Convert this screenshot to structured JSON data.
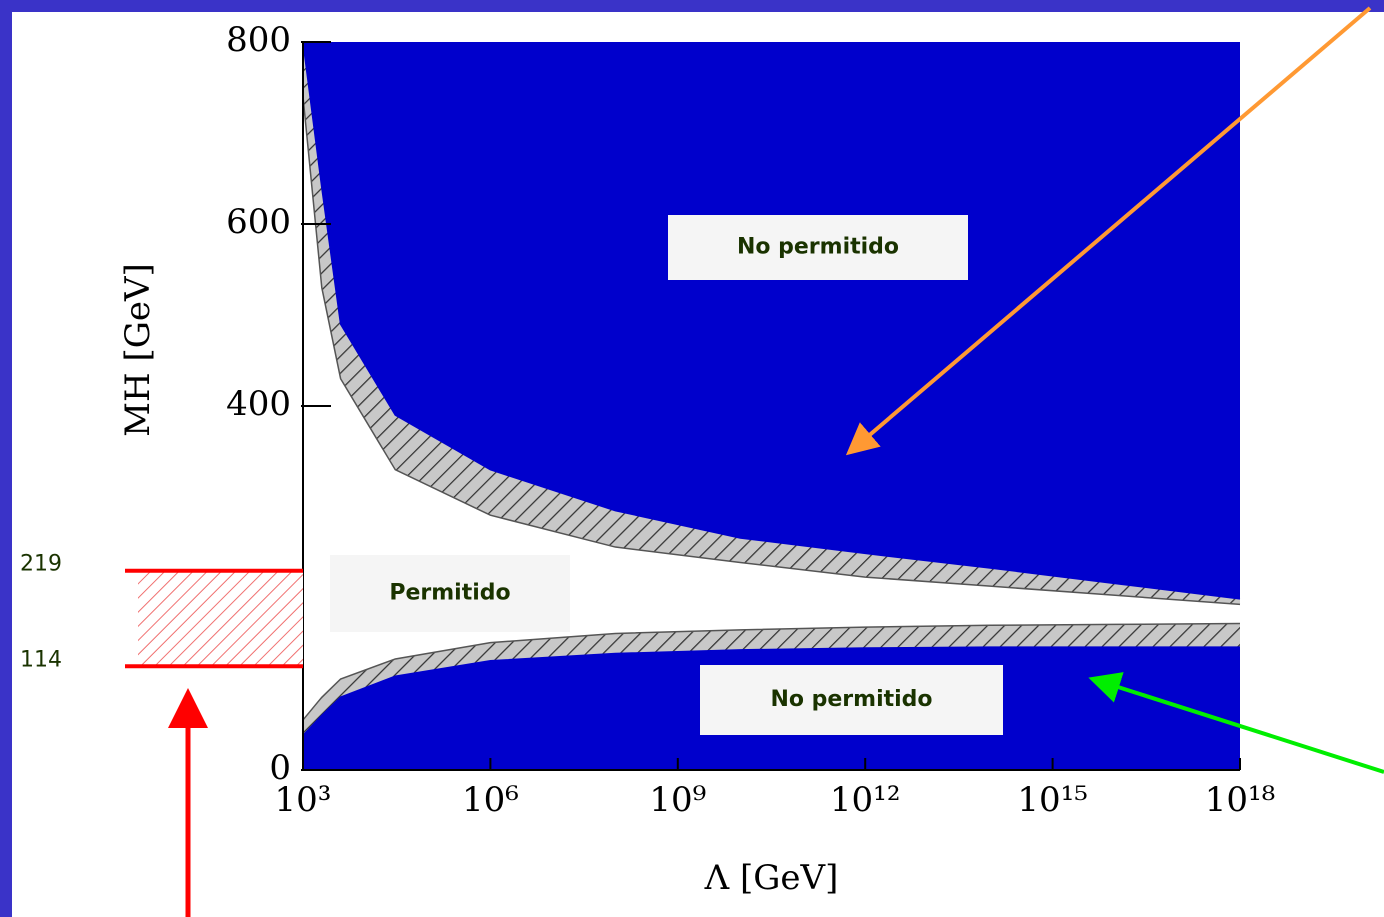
{
  "chart_data": {
    "type": "band",
    "x_label": "Λ [GeV]",
    "y_label": "MH [GeV]",
    "xscale": "log",
    "xlim": [
      1000,
      1e+18
    ],
    "xticks": [
      {
        "value": 1000,
        "label": "10³"
      },
      {
        "value": 1000000,
        "label": "10⁶"
      },
      {
        "value": 1000000000,
        "label": "10⁹"
      },
      {
        "value": 1000000000000.0,
        "label": "10¹²"
      },
      {
        "value": 1000000000000000.0,
        "label": "10¹⁵"
      },
      {
        "value": 1e+18,
        "label": "10¹⁸"
      }
    ],
    "ylim": [
      0,
      800
    ],
    "yticks": [
      0,
      400,
      600,
      800
    ],
    "x": [
      1000,
      2000,
      4000,
      30000,
      1000000,
      100000000,
      10000000000,
      1000000000000.0,
      100000000000000.0,
      1e+16,
      1e+18
    ],
    "series": [
      {
        "color": "#0000cc",
        "values": [
          800,
          640,
          490,
          390,
          330,
          285,
          255,
          238,
          222,
          205,
          188
        ]
      },
      {
        "color": "#ffffff",
        "values": [
          740,
          530,
          430,
          330,
          280,
          245,
          228,
          212,
          202,
          192,
          182
        ]
      },
      {
        "color": "#ffffff",
        "values": [
          55,
          80,
          100,
          122,
          140,
          150,
          154,
          157,
          159,
          160,
          161
        ]
      },
      {
        "color": "#0000cc",
        "values": [
          38,
          60,
          80,
          103,
          120,
          128,
          132,
          134,
          135,
          135,
          135
        ]
      }
    ],
    "annotations": [
      "No permitido",
      "No permitido",
      "Permitido"
    ],
    "highlight": [
      219,
      114
    ],
    "highlight_color": "#ff0000"
  }
}
